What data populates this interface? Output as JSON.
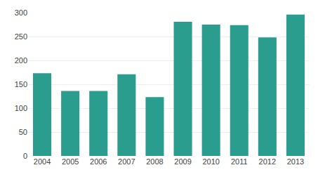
{
  "chart_data": {
    "type": "bar",
    "categories": [
      "2004",
      "2005",
      "2006",
      "2007",
      "2008",
      "2009",
      "2010",
      "2011",
      "2012",
      "2013"
    ],
    "values": [
      173,
      136,
      136,
      171,
      123,
      281,
      275,
      274,
      248,
      296
    ],
    "color": "#2a9d8f",
    "ylim": [
      0,
      300
    ],
    "yticks": [
      0,
      50,
      100,
      150,
      200,
      250,
      300
    ],
    "grid": true
  }
}
